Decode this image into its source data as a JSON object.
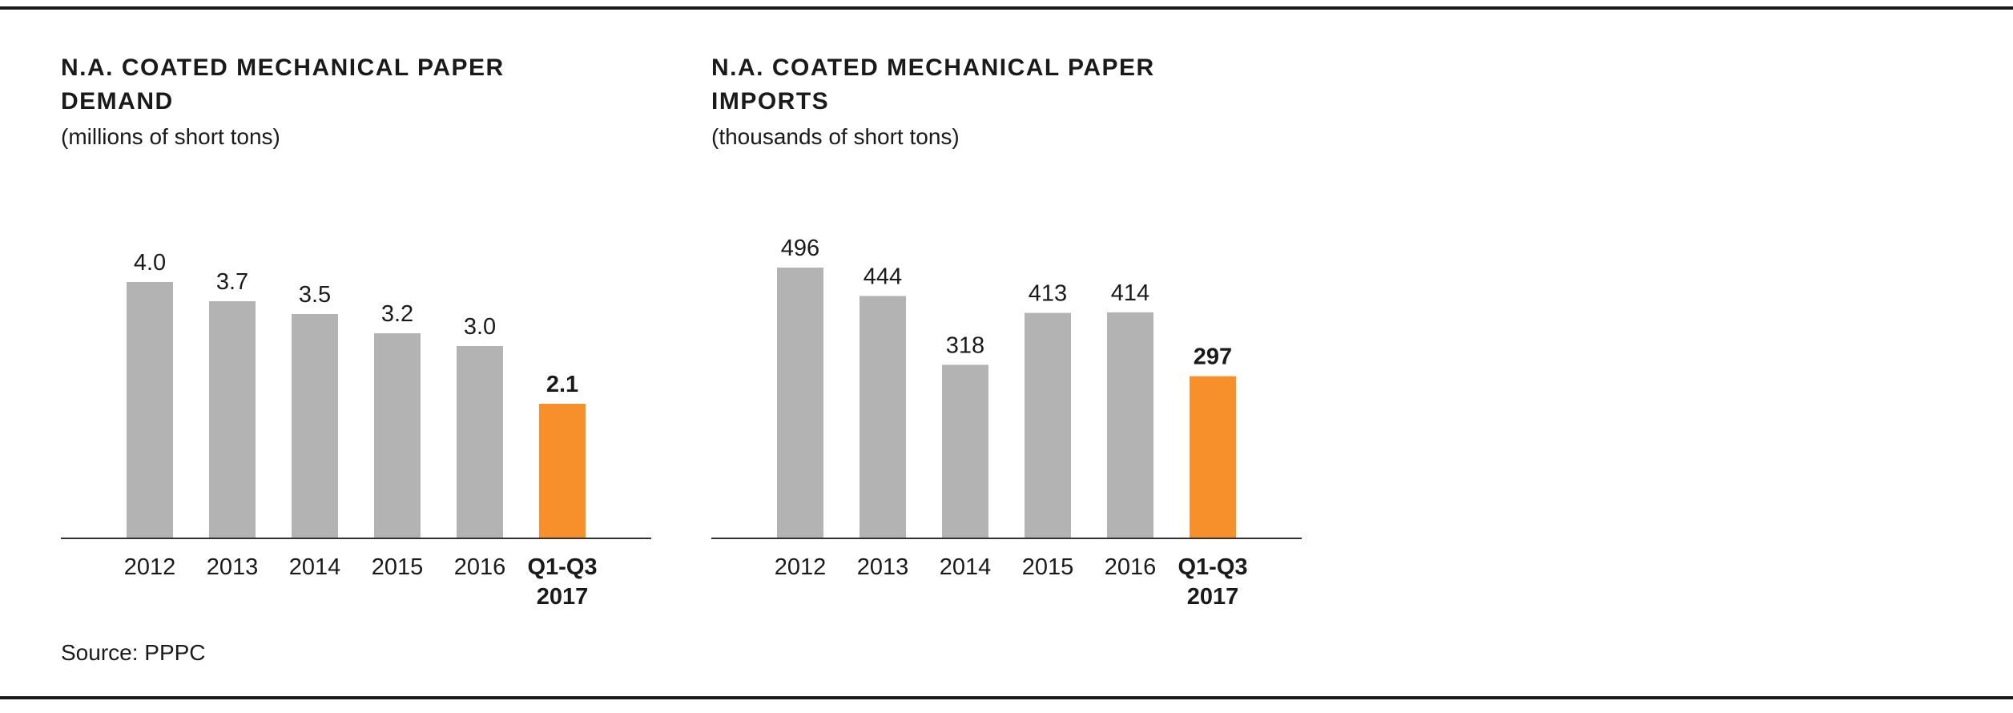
{
  "charts": [
    {
      "title": "N.A. COATED MECHANICAL PAPER DEMAND",
      "subtitle": "(millions of short tons)"
    },
    {
      "title": "N.A. COATED MECHANICAL PAPER IMPORTS",
      "subtitle": "(thousands of short tons)"
    }
  ],
  "source": "Source: PPPC",
  "colors": {
    "bar": "#b3b3b3",
    "highlight": "#f7902a",
    "axis": "#333333",
    "text": "#1a1a1a",
    "rule": "#1a1a1a"
  },
  "chart_data": [
    {
      "type": "bar",
      "title": "N.A. COATED MECHANICAL PAPER DEMAND",
      "subtitle": "(millions of short tons)",
      "categories": [
        "2012",
        "2013",
        "2014",
        "2015",
        "2016",
        "Q1-Q3 2017"
      ],
      "category_lines": [
        [
          "2012"
        ],
        [
          "2013"
        ],
        [
          "2014"
        ],
        [
          "2015"
        ],
        [
          "2016"
        ],
        [
          "Q1-Q3",
          "2017"
        ]
      ],
      "values": [
        4.0,
        3.7,
        3.5,
        3.2,
        3.0,
        2.1
      ],
      "value_labels": [
        "4.0",
        "3.7",
        "3.5",
        "3.2",
        "3.0",
        "2.1"
      ],
      "highlight_index": 5,
      "ylim": [
        0,
        4.0
      ],
      "xlabel": "",
      "ylabel": "",
      "grid": false,
      "legend": "none"
    },
    {
      "type": "bar",
      "title": "N.A. COATED MECHANICAL PAPER IMPORTS",
      "subtitle": "(thousands of short tons)",
      "categories": [
        "2012",
        "2013",
        "2014",
        "2015",
        "2016",
        "Q1-Q3 2017"
      ],
      "category_lines": [
        [
          "2012"
        ],
        [
          "2013"
        ],
        [
          "2014"
        ],
        [
          "2015"
        ],
        [
          "2016"
        ],
        [
          "Q1-Q3",
          "2017"
        ]
      ],
      "values": [
        496,
        444,
        318,
        413,
        414,
        297
      ],
      "value_labels": [
        "496",
        "444",
        "318",
        "413",
        "414",
        "297"
      ],
      "highlight_index": 5,
      "ylim": [
        0,
        496
      ],
      "xlabel": "",
      "ylabel": "",
      "grid": false,
      "legend": "none"
    }
  ]
}
